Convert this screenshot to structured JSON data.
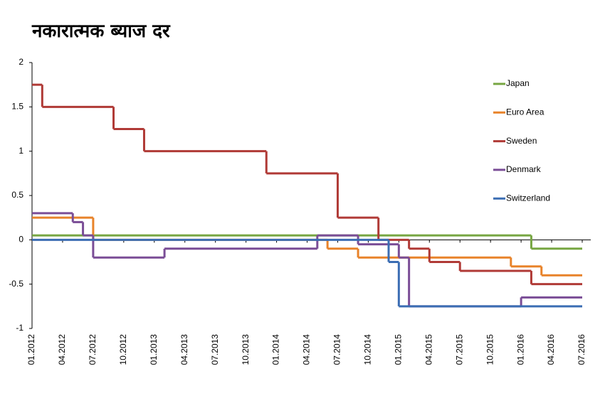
{
  "chart_data": {
    "type": "step-line",
    "title": "नकारात्मक ब्याज दर",
    "xlim": [
      "01.2012",
      "07.2016"
    ],
    "xticks": [
      "01.2012",
      "04.2012",
      "07.2012",
      "10.2012",
      "01.2013",
      "04.2013",
      "07.2013",
      "10.2013",
      "01.2014",
      "04.2014",
      "07.2014",
      "10.2014",
      "01.2015",
      "04.2015",
      "07.2015",
      "10.2015",
      "01.2016",
      "04.2016",
      "07.2016"
    ],
    "ylim": [
      -1,
      2
    ],
    "yticks": [
      2,
      1.5,
      1,
      0.5,
      0,
      -0.5,
      -1
    ],
    "grid": false,
    "legend": "right",
    "series": [
      {
        "name": "Japan",
        "color": "#77a642",
        "x": [
          "01.2012",
          "02.2016",
          "07.2016"
        ],
        "values": [
          0.05,
          -0.1,
          -0.1
        ]
      },
      {
        "name": "Euro Area",
        "color": "#e8832a",
        "x": [
          "01.2012",
          "07.2012",
          "06.2014",
          "09.2014",
          "12.2015",
          "03.2016",
          "07.2016"
        ],
        "values": [
          0.25,
          0,
          -0.1,
          -0.2,
          -0.3,
          -0.4,
          -0.4
        ]
      },
      {
        "name": "Sweden",
        "color": "#b03a36",
        "x": [
          "01.2012",
          "02.2012",
          "09.2012",
          "12.2012",
          "12.2013",
          "07.2014",
          "11.2014",
          "02.2015",
          "04.2015",
          "07.2015",
          "02.2016",
          "07.2016"
        ],
        "values": [
          1.75,
          1.5,
          1.25,
          1,
          0.75,
          0.25,
          0,
          -0.1,
          -0.25,
          -0.35,
          -0.5,
          -0.5
        ]
      },
      {
        "name": "Denmark",
        "color": "#7a4d96",
        "x": [
          "01.2012",
          "05.2012",
          "06.2012",
          "07.2012",
          "02.2013",
          "05.2014",
          "09.2014",
          "01.2015",
          "02.2015",
          "01.2016",
          "07.2016"
        ],
        "values": [
          0.3,
          0.2,
          0.05,
          -0.2,
          -0.1,
          0.05,
          -0.05,
          -0.2,
          -0.75,
          -0.65,
          -0.65
        ]
      },
      {
        "name": "Switzerland",
        "color": "#3b6db3",
        "x": [
          "01.2012",
          "12.2014",
          "01.2015",
          "07.2016"
        ],
        "values": [
          0,
          -0.25,
          -0.75,
          -0.75
        ]
      }
    ]
  }
}
